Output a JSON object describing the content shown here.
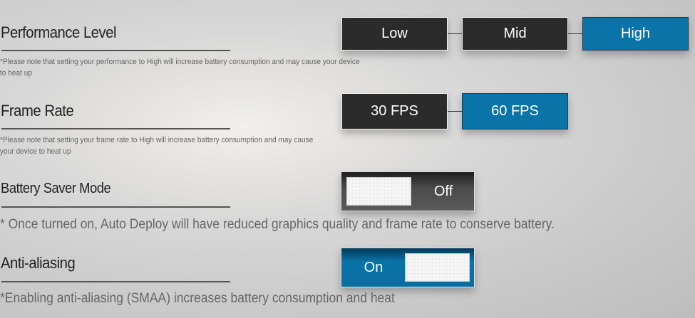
{
  "performance": {
    "title": "Performance Level",
    "note": "*Please note that setting your performance to High will increase battery consumption and may cause your device to heat up",
    "options": [
      "Low",
      "Mid",
      "High"
    ],
    "selected": "High"
  },
  "frame_rate": {
    "title": "Frame Rate",
    "note": "*Please note that setting your frame rate to High will increase battery consumption and may cause your device to heat up",
    "options": [
      "30 FPS",
      "60 FPS"
    ],
    "selected": "60 FPS"
  },
  "battery_saver": {
    "title": "Battery Saver Mode",
    "state": "Off",
    "note": "* Once turned on, Auto Deploy will have reduced graphics quality and frame rate to conserve battery."
  },
  "anti_aliasing": {
    "title": "Anti-aliasing",
    "state": "On",
    "note": "*Enabling anti-aliasing (SMAA) increases battery consumption and heat"
  },
  "colors": {
    "selected": "#0a73a8",
    "unselected": "#2b2b2b"
  }
}
